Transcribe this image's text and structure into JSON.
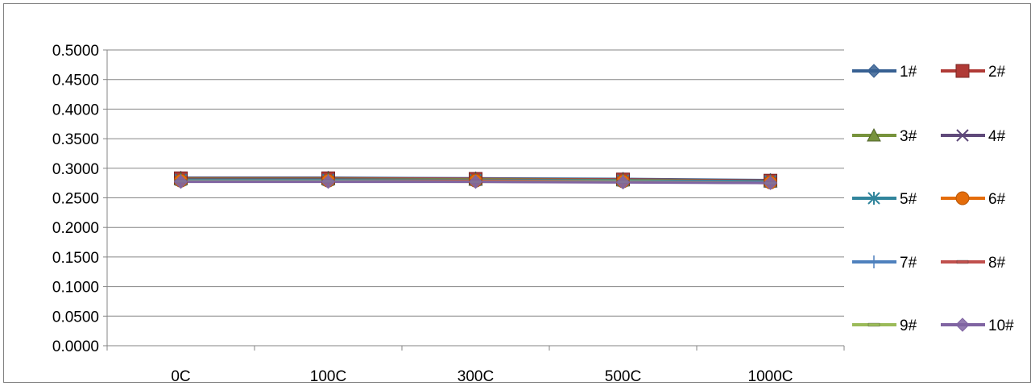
{
  "chart_data": {
    "type": "line",
    "title": "",
    "xlabel": "",
    "ylabel": "",
    "categories": [
      "0C",
      "100C",
      "300C",
      "500C",
      "1000C"
    ],
    "ylim": [
      0,
      0.5
    ],
    "y_ticks": [
      "0.0000",
      "0.0500",
      "0.1000",
      "0.1500",
      "0.2000",
      "0.2500",
      "0.3000",
      "0.3500",
      "0.4000",
      "0.4500",
      "0.5000"
    ],
    "grid": true,
    "legend_position": "right",
    "series": [
      {
        "name": "1#",
        "color": "#376092",
        "marker": "diamond",
        "values": [
          0.284,
          0.284,
          0.283,
          0.282,
          0.28
        ]
      },
      {
        "name": "2#",
        "color": "#b03a36",
        "marker": "square",
        "values": [
          0.283,
          0.283,
          0.282,
          0.281,
          0.279
        ]
      },
      {
        "name": "3#",
        "color": "#77933c",
        "marker": "triangle",
        "values": [
          0.282,
          0.282,
          0.281,
          0.28,
          0.278
        ]
      },
      {
        "name": "4#",
        "color": "#5f497a",
        "marker": "x",
        "values": [
          0.281,
          0.281,
          0.28,
          0.279,
          0.277
        ]
      },
      {
        "name": "5#",
        "color": "#31859c",
        "marker": "star",
        "values": [
          0.28,
          0.28,
          0.28,
          0.279,
          0.278
        ]
      },
      {
        "name": "6#",
        "color": "#e46c0a",
        "marker": "circle",
        "values": [
          0.279,
          0.279,
          0.279,
          0.278,
          0.276
        ]
      },
      {
        "name": "7#",
        "color": "#4f81bd",
        "marker": "plus",
        "values": [
          0.279,
          0.279,
          0.278,
          0.278,
          0.276
        ]
      },
      {
        "name": "8#",
        "color": "#c0504d",
        "marker": "dash",
        "values": [
          0.278,
          0.278,
          0.278,
          0.277,
          0.275
        ]
      },
      {
        "name": "9#",
        "color": "#9bbb59",
        "marker": "dash",
        "values": [
          0.278,
          0.278,
          0.277,
          0.277,
          0.275
        ]
      },
      {
        "name": "10#",
        "color": "#8064a2",
        "marker": "diamond",
        "values": [
          0.277,
          0.277,
          0.277,
          0.276,
          0.275
        ]
      }
    ]
  }
}
